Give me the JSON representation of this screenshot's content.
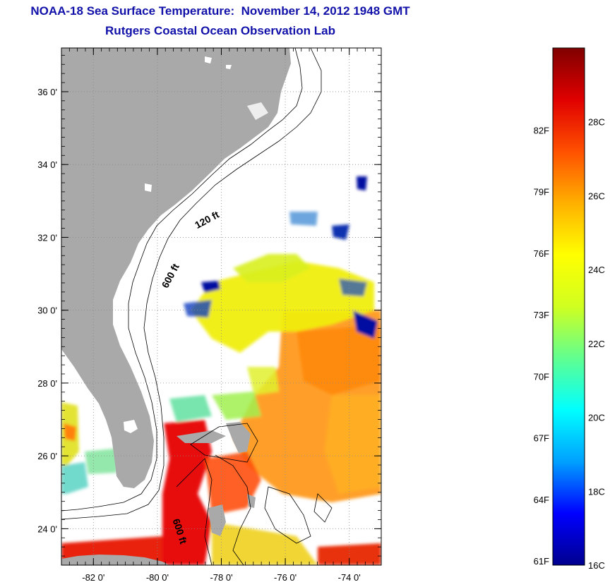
{
  "header": {
    "title": "NOAA-18 Sea Surface Temperature:  November 14, 2012 1948 GMT",
    "subtitle": "Rutgers Coastal Ocean Observation Lab"
  },
  "map": {
    "lat_range": [
      23,
      37.2
    ],
    "lon_range": [
      -83,
      -73
    ],
    "lat_ticks": [
      {
        "value": 24,
        "label": "24 0'"
      },
      {
        "value": 26,
        "label": "26 0'"
      },
      {
        "value": 28,
        "label": "28 0'"
      },
      {
        "value": 30,
        "label": "30 0'"
      },
      {
        "value": 32,
        "label": "32 0'"
      },
      {
        "value": 34,
        "label": "34 0'"
      },
      {
        "value": 36,
        "label": "36 0'"
      }
    ],
    "lon_ticks": [
      {
        "value": -82,
        "label": "-82 0'"
      },
      {
        "value": -80,
        "label": "-80 0'"
      },
      {
        "value": -78,
        "label": "-78 0'"
      },
      {
        "value": -76,
        "label": "-76 0'"
      },
      {
        "value": -74,
        "label": "-74 0'"
      }
    ],
    "contour_labels": [
      {
        "text": "120 ft",
        "lon": -78.4,
        "lat": 32.4,
        "angle": -28
      },
      {
        "text": "600 ft",
        "lon": -79.5,
        "lat": 30.9,
        "angle": -62
      },
      {
        "text": "600 ft",
        "lon": -79.4,
        "lat": 23.9,
        "angle": 72
      }
    ],
    "colors": {
      "land": "#a9a9a9",
      "ocean_no_data": "#ffffff",
      "grid": "#888888"
    }
  },
  "colorbar": {
    "min_c": 16,
    "max_c": 30,
    "labels_f": [
      {
        "value": 61,
        "label": "61F"
      },
      {
        "value": 64,
        "label": "64F"
      },
      {
        "value": 67,
        "label": "67F"
      },
      {
        "value": 70,
        "label": "70F"
      },
      {
        "value": 73,
        "label": "73F"
      },
      {
        "value": 76,
        "label": "76F"
      },
      {
        "value": 79,
        "label": "79F"
      },
      {
        "value": 82,
        "label": "82F"
      }
    ],
    "labels_c": [
      {
        "value": 16,
        "label": "16C"
      },
      {
        "value": 18,
        "label": "18C"
      },
      {
        "value": 20,
        "label": "20C"
      },
      {
        "value": 22,
        "label": "22C"
      },
      {
        "value": 24,
        "label": "24C"
      },
      {
        "value": 26,
        "label": "26C"
      },
      {
        "value": 28,
        "label": "28C"
      }
    ],
    "colors": [
      "#00008f",
      "#0000ff",
      "#00a0ff",
      "#00ffff",
      "#60ff90",
      "#d0ff20",
      "#ffff00",
      "#ffb000",
      "#ff5000",
      "#e00000",
      "#800000"
    ]
  }
}
